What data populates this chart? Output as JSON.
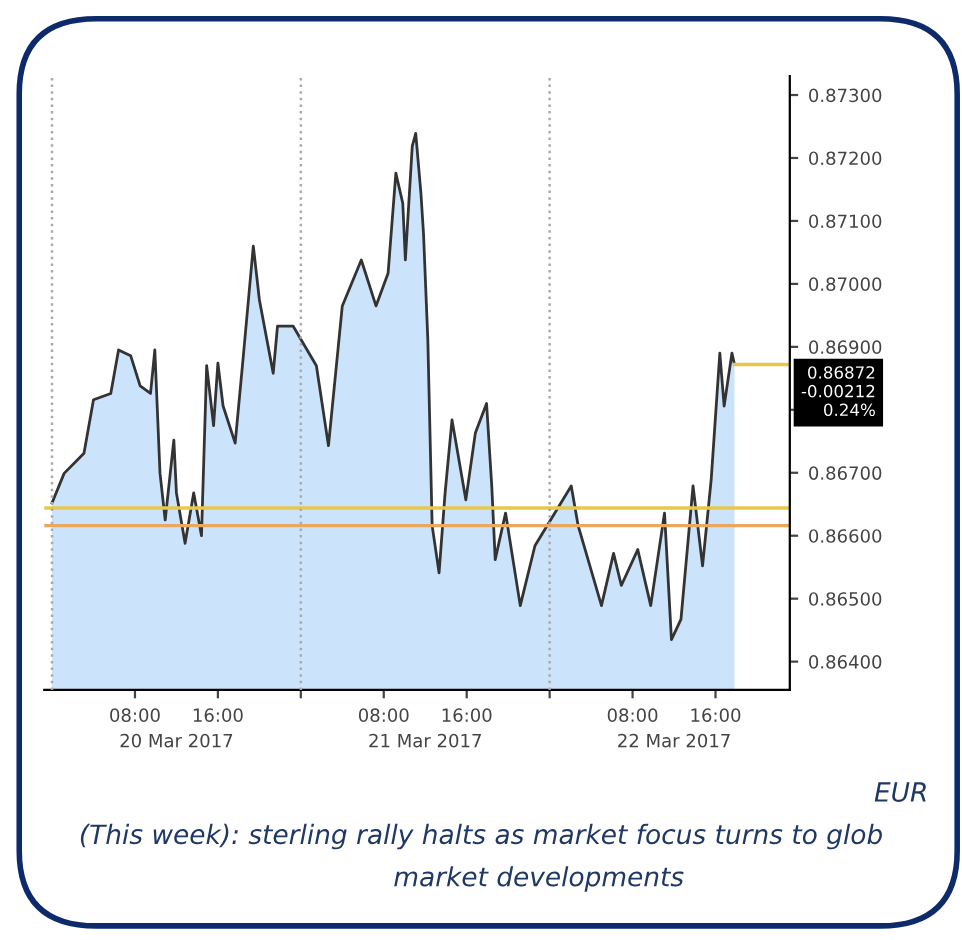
{
  "chart_data": {
    "type": "area",
    "x": [
      "2017-03-20T00:00",
      "2017-03-20T01:10",
      "2017-03-20T03:05",
      "2017-03-20T04:00",
      "2017-03-20T05:40",
      "2017-03-20T06:25",
      "2017-03-20T07:35",
      "2017-03-20T08:30",
      "2017-03-20T09:30",
      "2017-03-20T09:55",
      "2017-03-20T10:25",
      "2017-03-20T10:55",
      "2017-03-20T11:45",
      "2017-03-20T12:00",
      "2017-03-20T12:50",
      "2017-03-20T13:40",
      "2017-03-20T14:25",
      "2017-03-20T14:55",
      "2017-03-20T15:35",
      "2017-03-20T16:00",
      "2017-03-20T16:30",
      "2017-03-20T17:40",
      "2017-03-20T18:25",
      "2017-03-20T19:25",
      "2017-03-20T20:00",
      "2017-03-20T21:20",
      "2017-03-20T21:45",
      "2017-03-20T23:15",
      "2017-03-21T01:30",
      "2017-03-21T02:40",
      "2017-03-21T04:00",
      "2017-03-21T05:50",
      "2017-03-21T07:15",
      "2017-03-21T08:25",
      "2017-03-21T09:10",
      "2017-03-21T09:50",
      "2017-03-21T10:05",
      "2017-03-21T10:45",
      "2017-03-21T11:05",
      "2017-03-21T11:35",
      "2017-03-21T11:50",
      "2017-03-21T12:15",
      "2017-03-21T12:40",
      "2017-03-21T13:20",
      "2017-03-21T13:55",
      "2017-03-21T14:35",
      "2017-03-21T15:55",
      "2017-03-21T16:50",
      "2017-03-21T17:55",
      "2017-03-21T18:25",
      "2017-03-21T18:45",
      "2017-03-21T19:45",
      "2017-03-21T21:10",
      "2017-03-21T22:35",
      "2017-03-22T00:30",
      "2017-03-22T02:05",
      "2017-03-22T02:45",
      "2017-03-22T05:00",
      "2017-03-22T06:10",
      "2017-03-22T06:55",
      "2017-03-22T08:30",
      "2017-03-22T09:45",
      "2017-03-22T11:05",
      "2017-03-22T11:45",
      "2017-03-22T12:40",
      "2017-03-22T13:50",
      "2017-03-22T14:45",
      "2017-03-22T15:35",
      "2017-03-22T16:25",
      "2017-03-22T16:50",
      "2017-03-22T17:35",
      "2017-03-22T17:50"
    ],
    "series": [
      {
        "color": "#333333",
        "values": [
          0.86652,
          0.86699,
          0.86731,
          0.86816,
          0.86826,
          0.86895,
          0.86886,
          0.86838,
          0.86826,
          0.86895,
          0.86699,
          0.86625,
          0.86752,
          0.86668,
          0.86588,
          0.86668,
          0.866,
          0.8687,
          0.86775,
          0.86874,
          0.86806,
          0.86747,
          0.86879,
          0.8706,
          0.86975,
          0.86858,
          0.86933,
          0.86933,
          0.8687,
          0.86743,
          0.86965,
          0.87038,
          0.86965,
          0.87017,
          0.87176,
          0.87128,
          0.87038,
          0.87219,
          0.87239,
          0.87144,
          0.8708,
          0.86911,
          0.86616,
          0.86541,
          0.86668,
          0.86784,
          0.86657,
          0.86763,
          0.8681,
          0.86679,
          0.86562,
          0.86636,
          0.86489,
          0.86584,
          0.86636,
          0.86679,
          0.86616,
          0.86489,
          0.86572,
          0.86521,
          0.86578,
          0.86489,
          0.86636,
          0.86435,
          0.86467,
          0.86679,
          0.86552,
          0.86689,
          0.8689,
          0.86806,
          0.8689,
          0.86872
        ]
      }
    ],
    "xlim": [
      "2017-03-19T23:15",
      "2017-03-22T23:10"
    ],
    "xticks": [
      {
        "value": "2017-03-20T08:00",
        "label": "08:00"
      },
      {
        "value": "2017-03-20T16:00",
        "label": "16:00"
      },
      {
        "value": "2017-03-21T00:00",
        "label": null
      },
      {
        "value": "2017-03-21T08:00",
        "label": "08:00"
      },
      {
        "value": "2017-03-21T16:00",
        "label": "16:00"
      },
      {
        "value": "2017-03-22T00:00",
        "label": null
      },
      {
        "value": "2017-03-22T08:00",
        "label": "08:00"
      },
      {
        "value": "2017-03-22T16:00",
        "label": "16:00"
      }
    ],
    "x2lim": [
      "2017-03-19T23:15",
      "2017-03-22T23:10"
    ],
    "x2ticks": [
      {
        "value": "2017-03-20T12:00",
        "label": "20 Mar 2017"
      },
      {
        "value": "2017-03-21T12:00",
        "label": "21 Mar 2017"
      },
      {
        "value": "2017-03-22T12:00",
        "label": "22 Mar 2017"
      }
    ],
    "ylim": [
      0.86355,
      0.8733
    ],
    "yticks": [
      {
        "value": 0.864,
        "label": "0.86400"
      },
      {
        "value": 0.865,
        "label": "0.86500"
      },
      {
        "value": 0.866,
        "label": "0.86600"
      },
      {
        "value": 0.867,
        "label": "0.86700"
      },
      {
        "value": 0.868,
        "label": null
      },
      {
        "value": 0.869,
        "label": "0.86900"
      },
      {
        "value": 0.87,
        "label": "0.87000"
      },
      {
        "value": 0.871,
        "label": "0.87100"
      },
      {
        "value": 0.872,
        "label": "0.87200"
      },
      {
        "value": 0.873,
        "label": "0.87300"
      }
    ],
    "ref_lines": [
      {
        "axis": "x",
        "value": "2017-03-20T00:00",
        "color": "#aaaaaa",
        "line_style": "dotted"
      },
      {
        "axis": "x",
        "value": "2017-03-21T00:00",
        "color": "#aaaaaa",
        "line_style": "dotted"
      },
      {
        "axis": "x",
        "value": "2017-03-22T00:00",
        "color": "#aaaaaa",
        "line_style": "dotted"
      },
      {
        "axis": "y",
        "value": 0.86644,
        "color": "#e8c84a"
      },
      {
        "axis": "y",
        "value": 0.86616,
        "color": "#e8a860"
      },
      {
        "axis": "y",
        "value": 0.86872,
        "color": "#e8c84a",
        "label": "0.86872\n-0.00212\n0.24%"
      }
    ],
    "annotations": [
      "EUR",
      "(This week): sterling rally halts as market focus turns to glob",
      "market developments"
    ],
    "grid": false,
    "legend": false
  }
}
